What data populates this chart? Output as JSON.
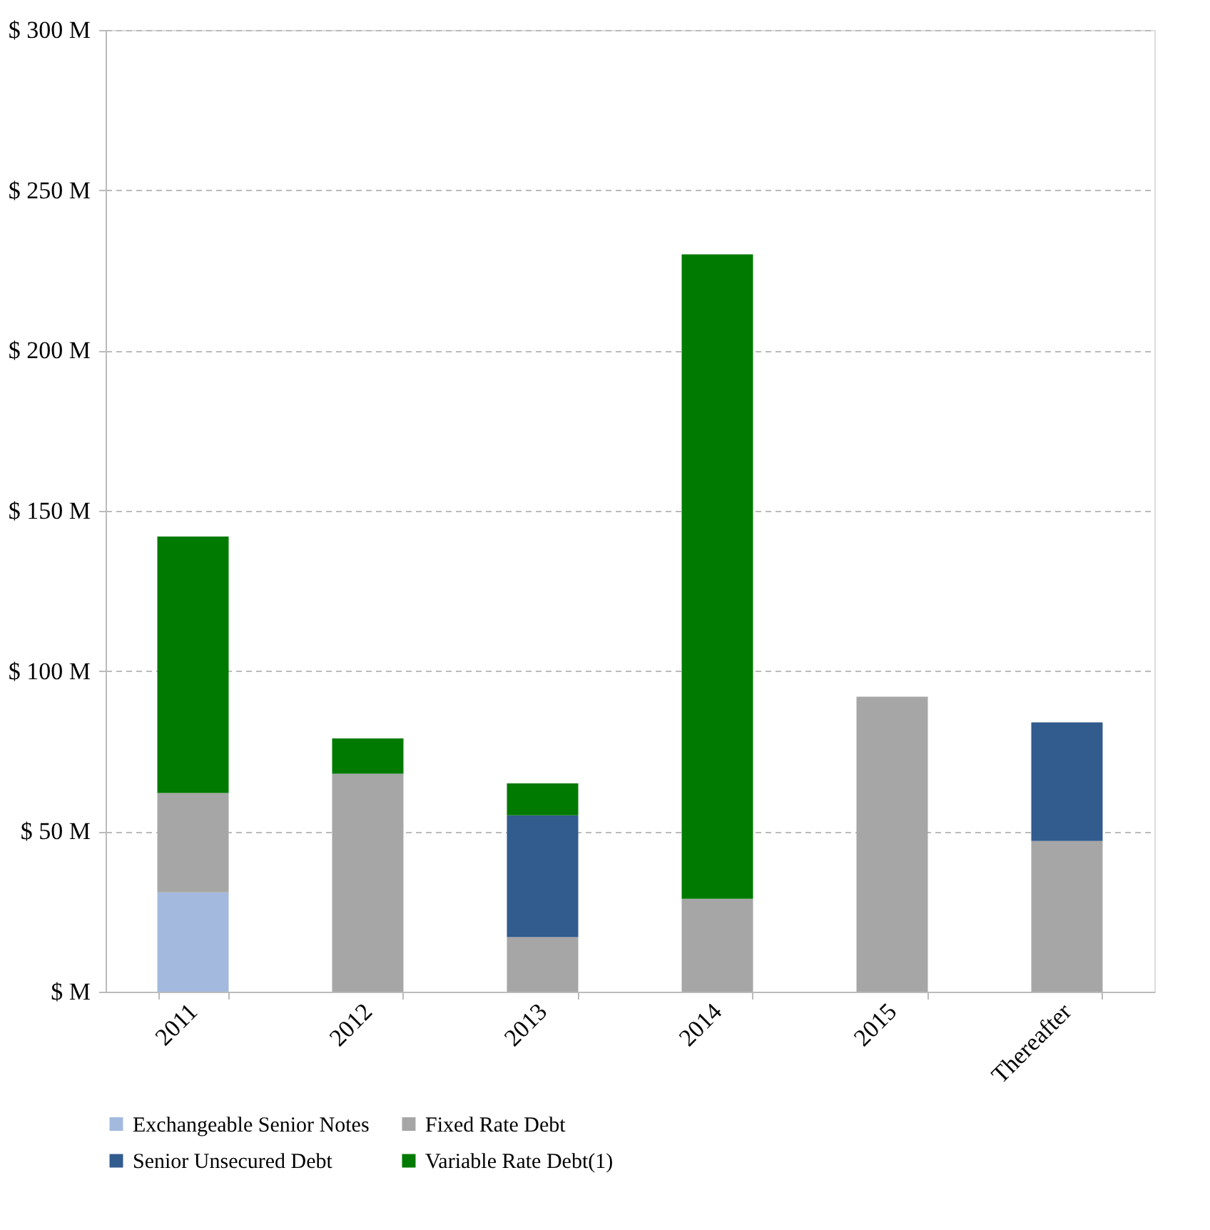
{
  "chart_data": {
    "type": "bar",
    "stacked": true,
    "categories": [
      "2011",
      "2012",
      "2013",
      "2014",
      "2015",
      "Thereafter"
    ],
    "series": [
      {
        "name": "Exchangeable Senior Notes",
        "color": "#a3bade",
        "values": [
          31,
          null,
          null,
          null,
          null,
          null
        ]
      },
      {
        "name": "Fixed Rate Debt",
        "color": "#a6a6a6",
        "values": [
          31,
          68,
          17,
          29,
          92,
          47
        ]
      },
      {
        "name": "Senior Unsecured Debt",
        "color": "#325b8e",
        "values": [
          null,
          null,
          38,
          null,
          null,
          37
        ]
      },
      {
        "name": "Variable Rate Debt(1)",
        "color": "#007a00",
        "values": [
          80,
          11,
          10,
          201,
          null,
          null
        ]
      }
    ],
    "ylim": [
      0,
      300
    ],
    "yticks": [
      {
        "value": 0,
        "label": "$  M"
      },
      {
        "value": 50,
        "label": "$ 50 M"
      },
      {
        "value": 100,
        "label": "$ 100 M"
      },
      {
        "value": 150,
        "label": "$ 150 M"
      },
      {
        "value": 200,
        "label": "$ 200 M"
      },
      {
        "value": 250,
        "label": "$ 250 M"
      },
      {
        "value": 300,
        "label": "$ 300 M"
      }
    ],
    "grid": "y",
    "legend": "bottom"
  }
}
